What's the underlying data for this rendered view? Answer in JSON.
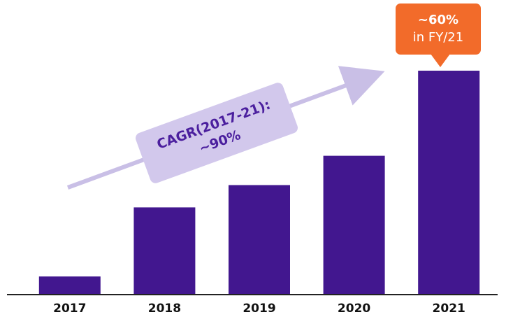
{
  "chart_data": {
    "type": "bar",
    "categories": [
      "2017",
      "2018",
      "2019",
      "2020",
      "2021"
    ],
    "values": [
      25,
      124,
      156,
      198,
      320
    ],
    "color": "#42178f",
    "ylim": [
      0,
      320
    ],
    "annotations": {
      "cagr_label": "CAGR(2017-21):",
      "cagr_value": "~90%",
      "callout_value": "~60%",
      "callout_text": "in FY/21"
    }
  }
}
